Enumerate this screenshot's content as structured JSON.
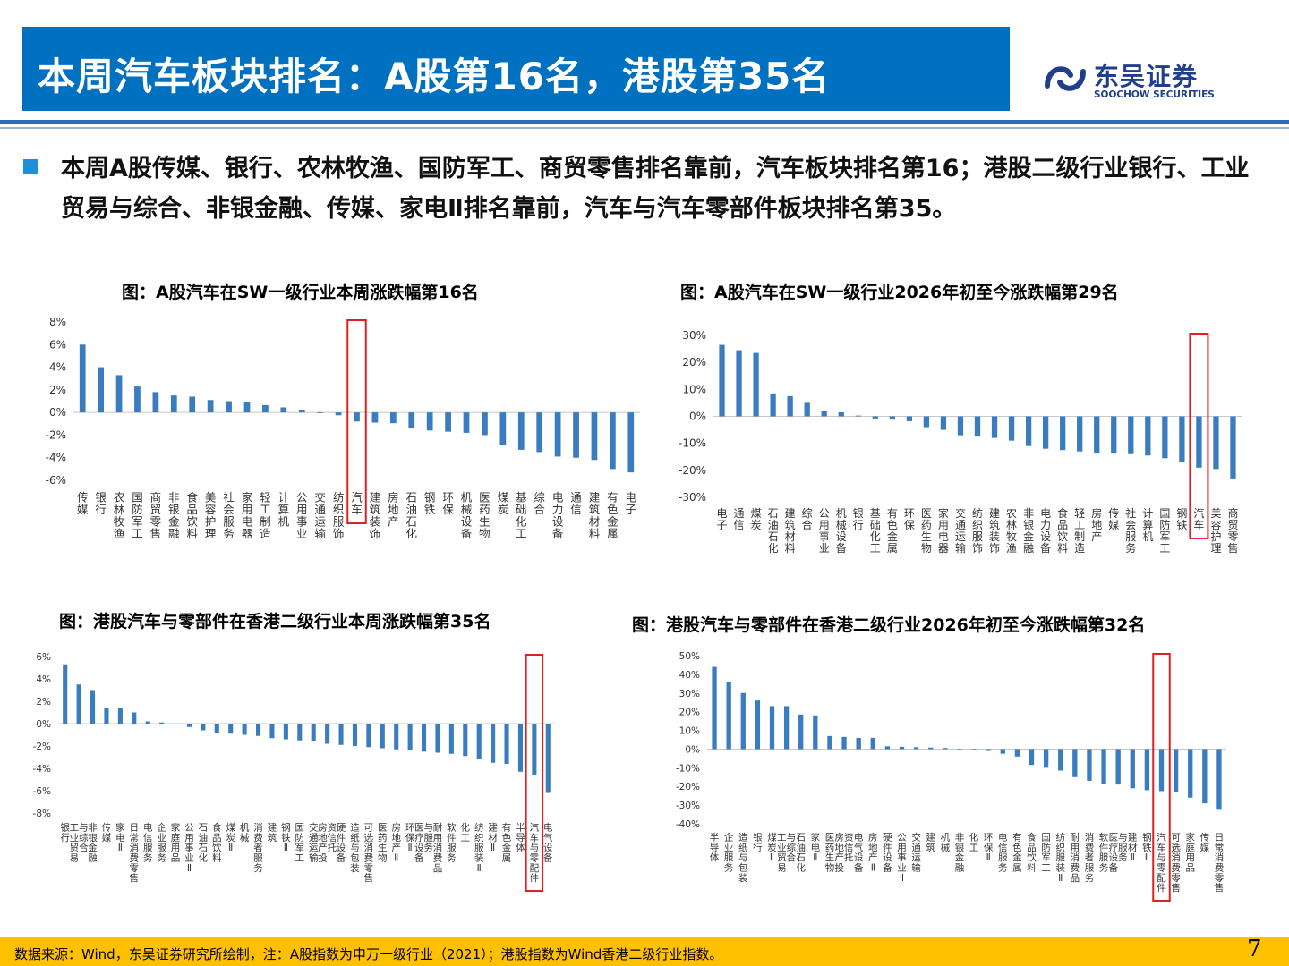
{
  "header": {
    "title": "本周汽车板块排名：A股第16名，港股第35名",
    "logo_cn": "东吴证券",
    "logo_en": "SOOCHOW SECURITIES"
  },
  "bullet": {
    "text": "本周A股传媒、银行、农林牧渔、国防军工、商贸零售排名靠前，汽车板块排名第16；港股二级行业银行、工业贸易与综合、非银金融、传媒、家电Ⅱ排名靠前，汽车与汽车零部件板块排名第35。"
  },
  "colors": {
    "bar": "#3a7cc0",
    "highlight": "#e02020",
    "title_bg": "#0070c0",
    "footer_bg": "#ffc000",
    "bullet": "#1e90d8"
  },
  "chart_data": [
    {
      "type": "bar",
      "title": "图：A股汽车在SW一级行业本周涨跌幅第16名",
      "categories": [
        "传媒",
        "银行",
        "农林牧渔",
        "国防军工",
        "商贸零售",
        "非银金融",
        "食品饮料",
        "美容护理",
        "社会服务",
        "家用电器",
        "轻工制造",
        "计算机",
        "公用事业",
        "交通运输",
        "纺织服饰",
        "汽车",
        "建筑装饰",
        "房地产",
        "石油石化",
        "钢铁",
        "环保",
        "机械设备",
        "医药生物",
        "煤炭",
        "基础化工",
        "综合",
        "电力设备",
        "通信",
        "建筑材料",
        "有色金属",
        "电子"
      ],
      "values": [
        6.0,
        4.0,
        3.3,
        2.3,
        1.8,
        1.5,
        1.4,
        1.1,
        1.0,
        0.9,
        0.65,
        0.45,
        0.25,
        0.0,
        -0.25,
        -0.8,
        -0.9,
        -0.95,
        -1.4,
        -1.6,
        -1.7,
        -1.8,
        -2.0,
        -2.9,
        -3.3,
        -3.5,
        -3.9,
        -4.0,
        -4.2,
        -5.0,
        -5.3
      ],
      "highlight": "汽车",
      "ylim": [
        -6,
        8
      ],
      "ytick_labels": [
        "8%",
        "6%",
        "4%",
        "2%",
        "0%",
        "-2%",
        "-4%",
        "-6%"
      ],
      "ytick_values": [
        8,
        6,
        4,
        2,
        0,
        -2,
        -4,
        -6
      ]
    },
    {
      "type": "bar",
      "title": "图：A股汽车在SW一级行业2026年初至今涨跌幅第29名",
      "categories": [
        "电子",
        "通信",
        "煤炭",
        "石油石化",
        "建筑材料",
        "综合",
        "公用事业",
        "机械设备",
        "银行",
        "基础化工",
        "有色金属",
        "环保",
        "医药生物",
        "家用电器",
        "交通运输",
        "纺织服饰",
        "建筑装饰",
        "农林牧渔",
        "非银金融",
        "电力设备",
        "食品饮料",
        "轻工制造",
        "房地产",
        "传媒",
        "社会服务",
        "计算机",
        "国防军工",
        "钢铁",
        "汽车",
        "美容护理",
        "商贸零售"
      ],
      "values": [
        26.5,
        24.5,
        23.5,
        8.5,
        7.5,
        5.0,
        2.0,
        1.5,
        0.3,
        -0.8,
        -1.2,
        -1.8,
        -4.0,
        -5.0,
        -7.0,
        -7.5,
        -8.0,
        -9.0,
        -11.0,
        -12.0,
        -12.5,
        -13.0,
        -13.5,
        -13.8,
        -14.0,
        -14.5,
        -15.5,
        -17.0,
        -19.0,
        -19.5,
        -23.0
      ],
      "highlight": "汽车",
      "ylim": [
        -30,
        30
      ],
      "ytick_labels": [
        "30%",
        "20%",
        "10%",
        "0%",
        "-10%",
        "-20%",
        "-30%"
      ],
      "ytick_values": [
        30,
        20,
        10,
        0,
        -10,
        -20,
        -30
      ]
    },
    {
      "type": "bar",
      "title": "图：港股汽车与零部件在香港二级行业本周涨跌幅第35名",
      "categories": [
        "银行",
        "工业贸易与综合",
        "非银金融",
        "传媒",
        "家电Ⅱ",
        "日常消费零售",
        "电信服务",
        "企业服务",
        "家庭用品",
        "公用事业Ⅱ",
        "石油石化",
        "食品饮料",
        "煤炭Ⅱ",
        "机械",
        "消费者服务",
        "建筑",
        "钢铁Ⅱ",
        "国防军工",
        "交通运输",
        "房地产投资信托",
        "硬件设备",
        "造纸与包装",
        "可选消费零售",
        "医药生物",
        "房地产Ⅱ",
        "环保Ⅱ",
        "医疗设备与服务",
        "耐用消费品",
        "软件服务",
        "化工",
        "纺织服装Ⅱ",
        "建材Ⅱ",
        "有色金属",
        "半导体",
        "汽车与零配件",
        "电气设备"
      ],
      "values": [
        5.3,
        3.5,
        3.0,
        1.4,
        1.4,
        1.0,
        0.2,
        0.1,
        0.0,
        -0.3,
        -0.6,
        -0.8,
        -0.9,
        -1.0,
        -1.1,
        -1.3,
        -1.4,
        -1.5,
        -1.6,
        -1.8,
        -1.9,
        -2.0,
        -2.1,
        -2.2,
        -2.3,
        -2.4,
        -2.5,
        -2.6,
        -2.7,
        -2.9,
        -3.2,
        -3.5,
        -3.6,
        -4.3,
        -4.6,
        -6.2
      ],
      "highlight": "汽车与零配件",
      "ylim": [
        -8,
        6
      ],
      "ytick_labels": [
        "6%",
        "4%",
        "2%",
        "0%",
        "-2%",
        "-4%",
        "-6%",
        "-8%"
      ],
      "ytick_values": [
        6,
        4,
        2,
        0,
        -2,
        -4,
        -6,
        -8
      ]
    },
    {
      "type": "bar",
      "title": "图：港股汽车与零部件在香港二级行业2026年初至今涨跌幅第32名",
      "categories": [
        "半导体",
        "企业服务",
        "造纸与包装",
        "银行",
        "煤炭Ⅱ",
        "工业贸易与综合",
        "石油石化",
        "家电Ⅱ",
        "医药生物",
        "房地产投资信托",
        "电气设备",
        "房地产Ⅱ",
        "硬件设备",
        "公用事业Ⅱ",
        "交通运输",
        "建筑",
        "机械",
        "非银金融",
        "化工",
        "环保Ⅱ",
        "电信服务",
        "有色金属",
        "食品饮料",
        "国防军工",
        "纺织服装Ⅱ",
        "耐用消费品",
        "消费者服务",
        "软件服务",
        "医疗设备与服务",
        "建材Ⅱ",
        "钢铁Ⅱ",
        "汽车与零配件",
        "可选消费零售",
        "家庭用品",
        "传媒",
        "日常消费零售"
      ],
      "values": [
        44,
        36,
        30,
        26,
        23,
        23,
        18.5,
        18,
        7,
        6.5,
        6,
        6,
        1.5,
        1.2,
        1.0,
        0.8,
        0.6,
        0.0,
        -0.5,
        -1.0,
        -2.5,
        -4.0,
        -8.5,
        -10.0,
        -11.5,
        -15.0,
        -17.0,
        -18.5,
        -19.0,
        -21.0,
        -22.0,
        -22.5,
        -23.0,
        -26.0,
        -29.0,
        -32.5
      ],
      "highlight": "汽车与零配件",
      "ylim": [
        -40,
        50
      ],
      "ytick_labels": [
        "50%",
        "40%",
        "30%",
        "20%",
        "10%",
        "0%",
        "-10%",
        "-20%",
        "-30%",
        "-40%"
      ],
      "ytick_values": [
        50,
        40,
        30,
        20,
        10,
        0,
        -10,
        -20,
        -30,
        -40
      ]
    }
  ],
  "footer": {
    "source": "数据来源：Wind，东吴证券研究所绘制，注：A股指数为申万一级行业（2021）；港股指数为Wind香港二级行业指数。",
    "page": "7"
  }
}
